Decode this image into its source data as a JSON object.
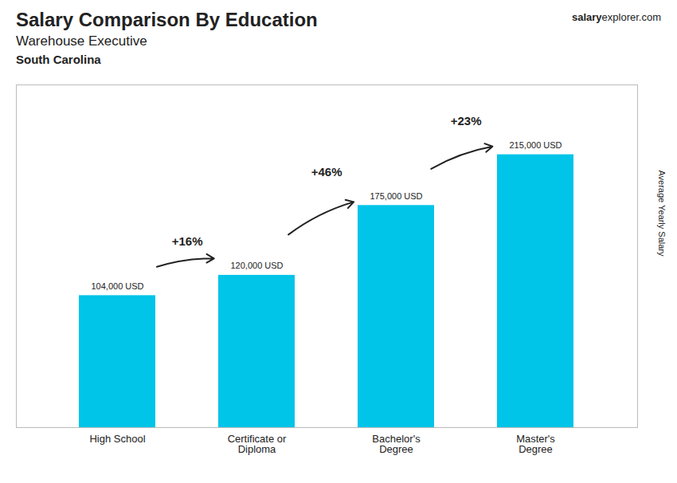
{
  "chart_data": {
    "type": "bar",
    "title": "Salary Comparison By Education",
    "subtitle": "Warehouse Executive",
    "subtitle2": "South Carolina",
    "brand": [
      "salary",
      "explorer.com"
    ],
    "ylabel": "Average Yearly Salary",
    "categories": [
      "High School",
      "Certificate or\nDiploma",
      "Bachelor's\nDegree",
      "Master's\nDegree"
    ],
    "values": [
      104000,
      120000,
      175000,
      215000
    ],
    "value_labels": [
      "104,000 USD",
      "120,000 USD",
      "175,000 USD",
      "215,000 USD"
    ],
    "data_labels": true,
    "color": "#00c4e8",
    "ylim": [
      0,
      270000
    ],
    "tick_labels": "x",
    "annotations": [
      {
        "text": "+16%",
        "from": "High School",
        "to": "Certificate or\nDiploma"
      },
      {
        "text": "+46%",
        "from": "Certificate or\nDiploma",
        "to": "Bachelor's\nDegree"
      },
      {
        "text": "+23%",
        "from": "Bachelor's\nDegree",
        "to": "Master's\nDegree"
      }
    ]
  }
}
